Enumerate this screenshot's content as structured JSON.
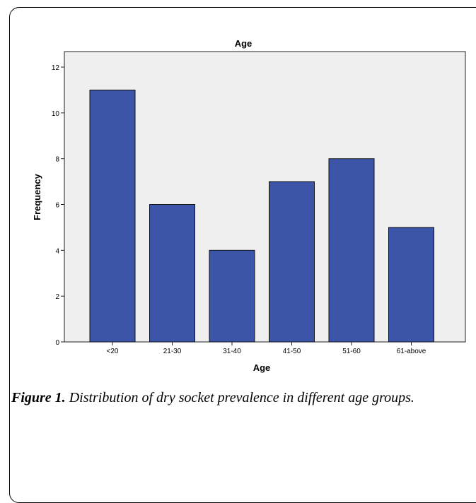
{
  "chart_data": {
    "type": "bar",
    "title": "Age",
    "xlabel": "Age",
    "ylabel": "Frequency",
    "categories": [
      "<20",
      "21-30",
      "31-40",
      "41-50",
      "51-60",
      "61-above"
    ],
    "values": [
      11,
      6,
      4,
      7,
      8,
      5
    ],
    "ylim": [
      0,
      12
    ],
    "yticks": [
      "0",
      "2",
      "4",
      "6",
      "8",
      "10",
      "12"
    ],
    "colors": {
      "bar": "#3d55a8",
      "plot_bg": "#efefef",
      "bar_stroke": "#111111"
    },
    "grid": false,
    "legend": "none"
  },
  "caption": {
    "label": "Figure 1.",
    "text": "Distribution of dry socket prevalence in different age groups."
  }
}
